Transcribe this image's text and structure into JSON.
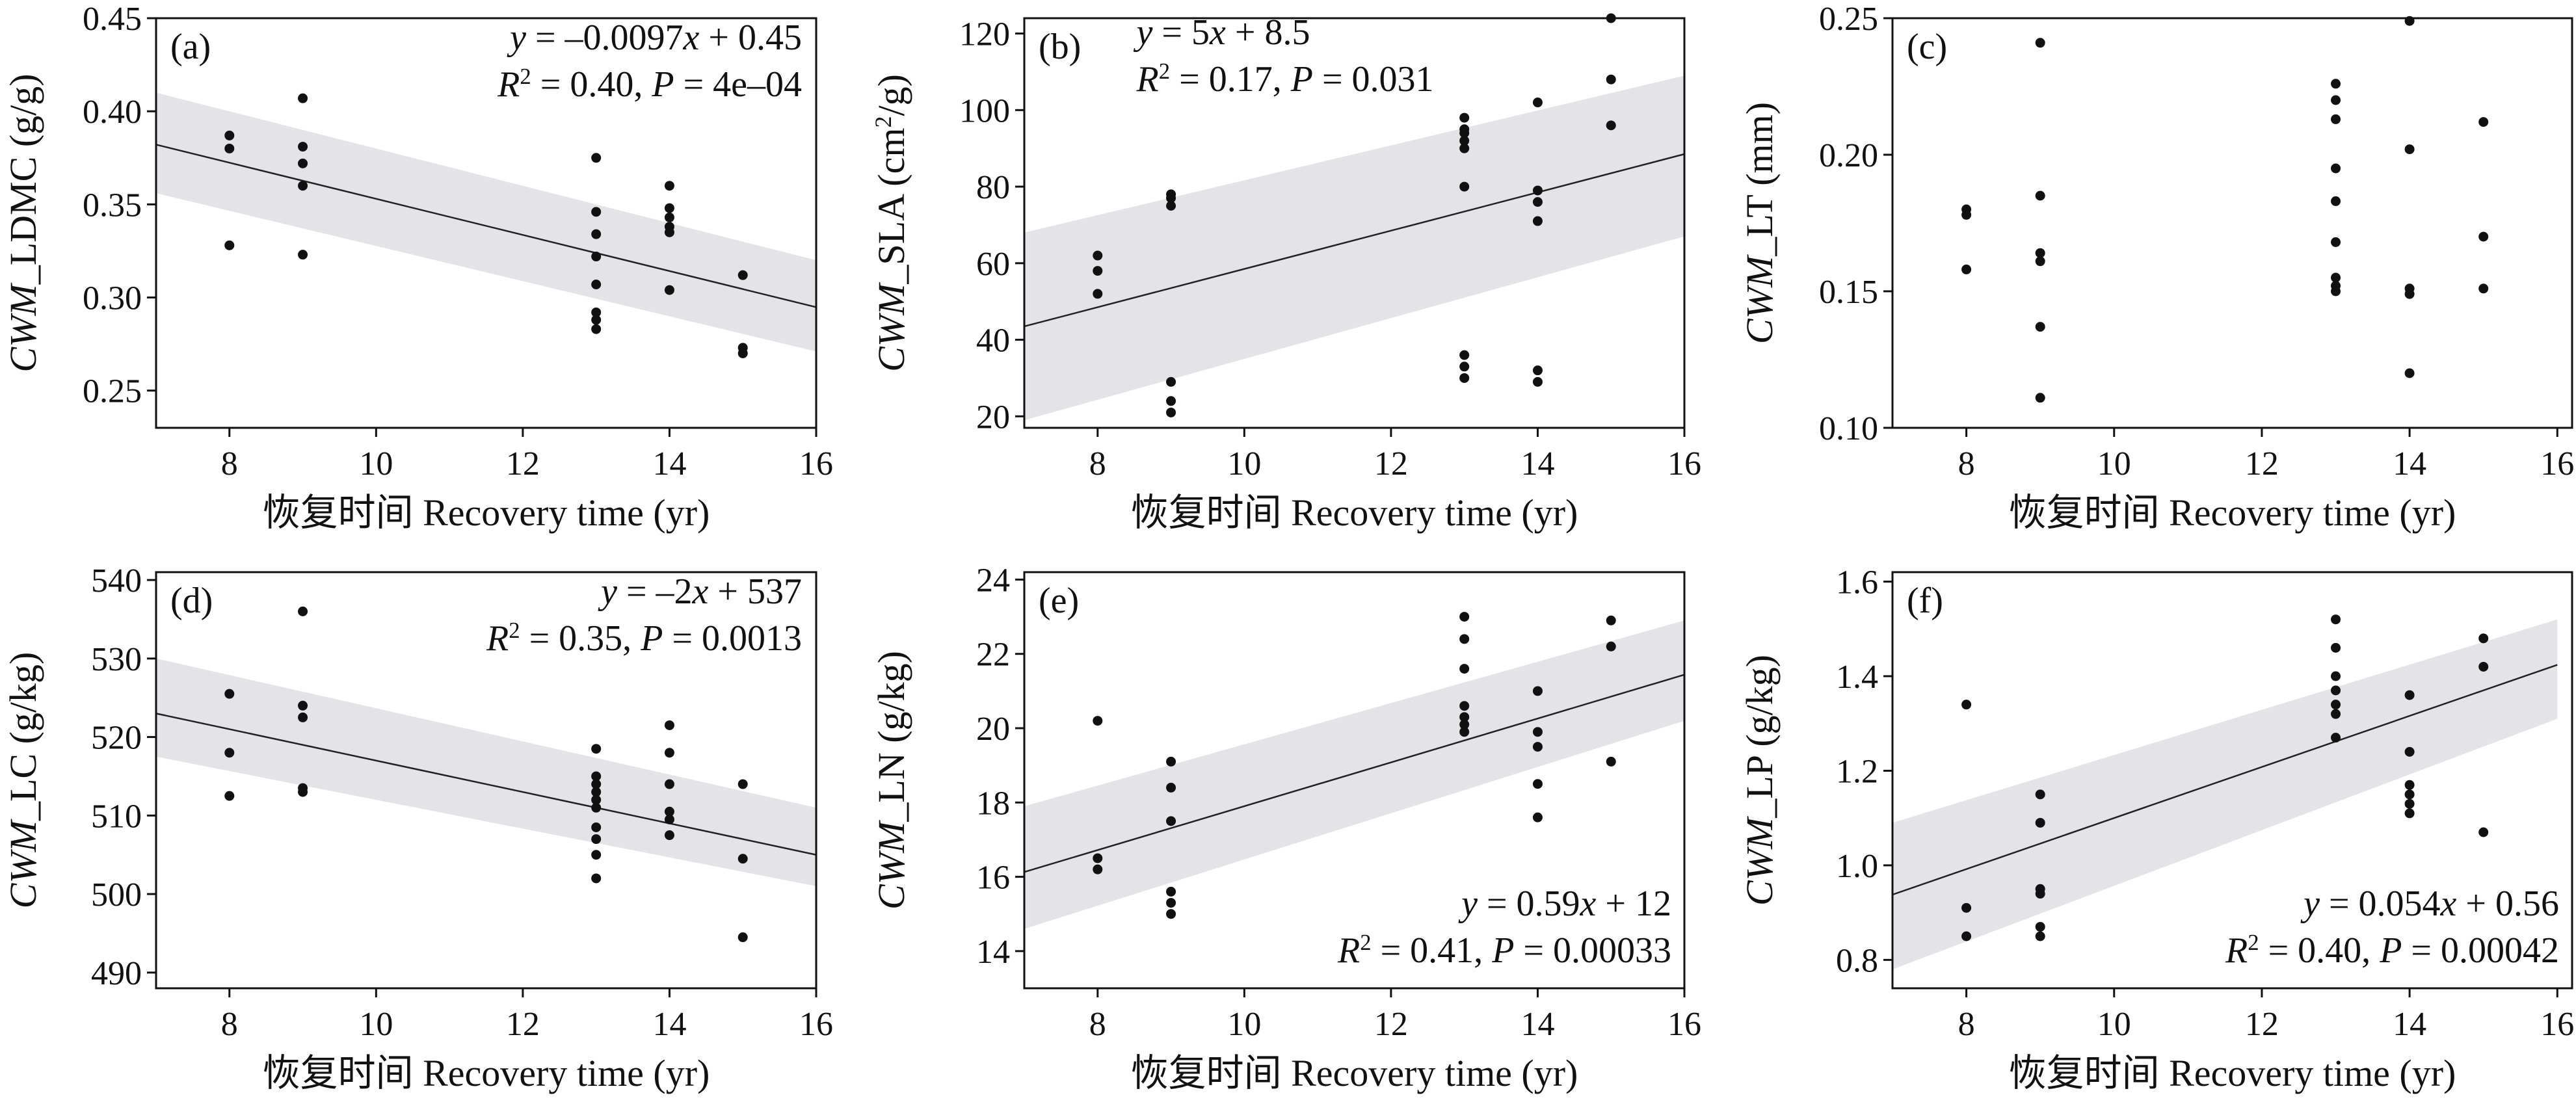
{
  "chart_data": [
    {
      "id": "a",
      "type": "scatter",
      "panel_label": "(a)",
      "xlabel": "恢复时间 Recovery time (yr)",
      "ylabel": "CWM_LDMC (g/g)",
      "xlim": [
        7,
        16
      ],
      "ylim": [
        0.23,
        0.45
      ],
      "xticks": [
        8,
        10,
        12,
        14,
        16
      ],
      "yticks": [
        0.25,
        0.3,
        0.35,
        0.4,
        0.45
      ],
      "tick_decimals": 2,
      "regression": {
        "slope": -0.0097,
        "intercept": 0.45,
        "ci_start": [
          0.356,
          0.41
        ],
        "ci_end": [
          0.271,
          0.32
        ]
      },
      "equation": {
        "line1": "y = –0.0097x + 0.45",
        "line2": "R² = 0.40, P = 4e–04"
      },
      "equation_position": "top-right",
      "points": [
        [
          8,
          0.387
        ],
        [
          8,
          0.38
        ],
        [
          8,
          0.328
        ],
        [
          9,
          0.407
        ],
        [
          9,
          0.381
        ],
        [
          9,
          0.372
        ],
        [
          9,
          0.36
        ],
        [
          9,
          0.323
        ],
        [
          13,
          0.375
        ],
        [
          13,
          0.346
        ],
        [
          13,
          0.334
        ],
        [
          13,
          0.322
        ],
        [
          13,
          0.307
        ],
        [
          13,
          0.292
        ],
        [
          13,
          0.288
        ],
        [
          13,
          0.283
        ],
        [
          14,
          0.36
        ],
        [
          14,
          0.348
        ],
        [
          14,
          0.343
        ],
        [
          14,
          0.338
        ],
        [
          14,
          0.335
        ],
        [
          14,
          0.304
        ],
        [
          15,
          0.312
        ],
        [
          15,
          0.273
        ],
        [
          15,
          0.27
        ]
      ]
    },
    {
      "id": "b",
      "type": "scatter",
      "panel_label": "(b)",
      "xlabel": "恢复时间 Recovery time (yr)",
      "ylabel": "CWM_SLA (cm²/g)",
      "xlim": [
        7,
        16
      ],
      "ylim": [
        17,
        124
      ],
      "xticks": [
        8,
        10,
        12,
        14,
        16
      ],
      "yticks": [
        20,
        40,
        60,
        80,
        100,
        120
      ],
      "tick_decimals": 0,
      "regression": {
        "slope": 5,
        "intercept": 8.5,
        "ci_start": [
          19,
          68
        ],
        "ci_end": [
          67,
          109
        ]
      },
      "equation": {
        "line1": "y = 5x + 8.5",
        "line2": "R² = 0.17, P = 0.031"
      },
      "equation_position": "top-center",
      "points": [
        [
          8,
          62
        ],
        [
          8,
          58
        ],
        [
          8,
          52
        ],
        [
          9,
          78
        ],
        [
          9,
          77
        ],
        [
          9,
          75
        ],
        [
          9,
          29
        ],
        [
          9,
          24
        ],
        [
          9,
          21
        ],
        [
          13,
          98
        ],
        [
          13,
          95
        ],
        [
          13,
          94
        ],
        [
          13,
          92
        ],
        [
          13,
          90
        ],
        [
          13,
          80
        ],
        [
          13,
          36
        ],
        [
          13,
          33
        ],
        [
          13,
          30
        ],
        [
          14,
          102
        ],
        [
          14,
          79
        ],
        [
          14,
          76
        ],
        [
          14,
          71
        ],
        [
          14,
          32
        ],
        [
          14,
          29
        ],
        [
          15,
          124
        ],
        [
          15,
          108
        ],
        [
          15,
          96
        ]
      ]
    },
    {
      "id": "c",
      "type": "scatter",
      "panel_label": "(c)",
      "xlabel": "恢复时间 Recovery time (yr)",
      "ylabel": "CWM_LT (mm)",
      "xlim": [
        7,
        16.2
      ],
      "ylim": [
        0.1,
        0.25
      ],
      "xticks": [
        8,
        10,
        12,
        14,
        16
      ],
      "yticks": [
        0.1,
        0.15,
        0.2,
        0.25
      ],
      "tick_decimals": 2,
      "regression": null,
      "equation": null,
      "equation_position": null,
      "points": [
        [
          8,
          0.18
        ],
        [
          8,
          0.178
        ],
        [
          8,
          0.158
        ],
        [
          9,
          0.241
        ],
        [
          9,
          0.185
        ],
        [
          9,
          0.164
        ],
        [
          9,
          0.161
        ],
        [
          9,
          0.137
        ],
        [
          9,
          0.111
        ],
        [
          13,
          0.226
        ],
        [
          13,
          0.22
        ],
        [
          13,
          0.213
        ],
        [
          13,
          0.195
        ],
        [
          13,
          0.183
        ],
        [
          13,
          0.168
        ],
        [
          13,
          0.155
        ],
        [
          13,
          0.152
        ],
        [
          13,
          0.15
        ],
        [
          14,
          0.249
        ],
        [
          14,
          0.202
        ],
        [
          14,
          0.151
        ],
        [
          14,
          0.149
        ],
        [
          14,
          0.12
        ],
        [
          15,
          0.212
        ],
        [
          15,
          0.17
        ],
        [
          15,
          0.151
        ]
      ]
    },
    {
      "id": "d",
      "type": "scatter",
      "panel_label": "(d)",
      "xlabel": "恢复时间 Recovery time (yr)",
      "ylabel": "CWM_LC (g/kg)",
      "xlim": [
        7,
        16
      ],
      "ylim": [
        488,
        541
      ],
      "xticks": [
        8,
        10,
        12,
        14,
        16
      ],
      "yticks": [
        490,
        500,
        510,
        520,
        530,
        540
      ],
      "tick_decimals": 0,
      "regression": {
        "slope": -2,
        "intercept": 537,
        "ci_start": [
          517.5,
          530
        ],
        "ci_end": [
          501,
          511
        ]
      },
      "equation": {
        "line1": "y = –2x + 537",
        "line2": "R² = 0.35, P = 0.0013"
      },
      "equation_position": "top-right",
      "points": [
        [
          8,
          525.5
        ],
        [
          8,
          518
        ],
        [
          8,
          512.5
        ],
        [
          9,
          536
        ],
        [
          9,
          524
        ],
        [
          9,
          522.5
        ],
        [
          9,
          513.5
        ],
        [
          9,
          513
        ],
        [
          13,
          518.5
        ],
        [
          13,
          515
        ],
        [
          13,
          514
        ],
        [
          13,
          513
        ],
        [
          13,
          512
        ],
        [
          13,
          511
        ],
        [
          13,
          508.5
        ],
        [
          13,
          507
        ],
        [
          13,
          505
        ],
        [
          13,
          502
        ],
        [
          14,
          521.5
        ],
        [
          14,
          518
        ],
        [
          14,
          514
        ],
        [
          14,
          510.5
        ],
        [
          14,
          509.5
        ],
        [
          14,
          507.5
        ],
        [
          15,
          514
        ],
        [
          15,
          504.5
        ],
        [
          15,
          494.5
        ]
      ]
    },
    {
      "id": "e",
      "type": "scatter",
      "panel_label": "(e)",
      "xlabel": "恢复时间 Recovery time (yr)",
      "ylabel": "CWM_LN (g/kg)",
      "xlim": [
        7,
        16
      ],
      "ylim": [
        13,
        24.2
      ],
      "xticks": [
        8,
        10,
        12,
        14,
        16
      ],
      "yticks": [
        14,
        16,
        18,
        20,
        22,
        24
      ],
      "tick_decimals": 0,
      "regression": {
        "slope": 0.59,
        "intercept": 12,
        "ci_start": [
          14.6,
          17.9
        ],
        "ci_end": [
          20.2,
          22.9
        ]
      },
      "equation": {
        "line1": "y = 0.59x + 12",
        "line2": "R² = 0.41, P = 0.00033"
      },
      "equation_position": "bottom-right",
      "points": [
        [
          8,
          20.2
        ],
        [
          8,
          16.5
        ],
        [
          8,
          16.2
        ],
        [
          9,
          19.1
        ],
        [
          9,
          18.4
        ],
        [
          9,
          17.5
        ],
        [
          9,
          15.6
        ],
        [
          9,
          15.3
        ],
        [
          9,
          15
        ],
        [
          13,
          23
        ],
        [
          13,
          22.4
        ],
        [
          13,
          21.6
        ],
        [
          13,
          20.6
        ],
        [
          13,
          20.3
        ],
        [
          13,
          20.1
        ],
        [
          13,
          19.9
        ],
        [
          14,
          21
        ],
        [
          14,
          19.9
        ],
        [
          14,
          19.5
        ],
        [
          14,
          18.5
        ],
        [
          14,
          17.6
        ],
        [
          15,
          22.9
        ],
        [
          15,
          22.2
        ],
        [
          15,
          19.1
        ]
      ]
    },
    {
      "id": "f",
      "type": "scatter",
      "panel_label": "(f)",
      "xlabel": "恢复时间 Recovery time (yr)",
      "ylabel": "CWM_LP (g/kg)",
      "xlim": [
        7,
        16.2
      ],
      "ylim": [
        0.74,
        1.62
      ],
      "xticks": [
        8,
        10,
        12,
        14,
        16
      ],
      "yticks": [
        0.8,
        1.0,
        1.2,
        1.4,
        1.6
      ],
      "tick_decimals": 1,
      "regression": {
        "slope": 0.054,
        "intercept": 0.56,
        "ci_start": [
          0.78,
          1.09
        ],
        "ci_end": [
          1.31,
          1.52
        ]
      },
      "equation": {
        "line1": "y = 0.054x + 0.56",
        "line2": "R² = 0.40, P = 0.00042"
      },
      "equation_position": "bottom-right",
      "points": [
        [
          8,
          1.34
        ],
        [
          8,
          0.91
        ],
        [
          8,
          0.85
        ],
        [
          9,
          1.15
        ],
        [
          9,
          1.09
        ],
        [
          9,
          0.95
        ],
        [
          9,
          0.94
        ],
        [
          9,
          0.87
        ],
        [
          9,
          0.85
        ],
        [
          13,
          1.52
        ],
        [
          13,
          1.46
        ],
        [
          13,
          1.4
        ],
        [
          13,
          1.37
        ],
        [
          13,
          1.34
        ],
        [
          13,
          1.32
        ],
        [
          13,
          1.27
        ],
        [
          14,
          1.36
        ],
        [
          14,
          1.24
        ],
        [
          14,
          1.17
        ],
        [
          14,
          1.15
        ],
        [
          14,
          1.13
        ],
        [
          14,
          1.11
        ],
        [
          15,
          1.48
        ],
        [
          15,
          1.42
        ],
        [
          15,
          1.07
        ]
      ]
    }
  ]
}
